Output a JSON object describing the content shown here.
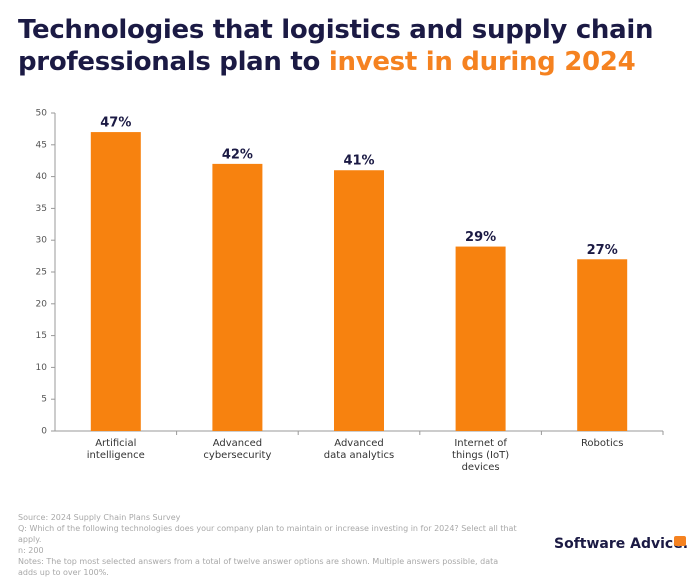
{
  "chart_data": {
    "type": "bar",
    "title_parts": [
      "Technologies that logistics and supply chain professionals plan to",
      "invest in during 2024"
    ],
    "categories": [
      [
        "Artificial",
        "intelligence"
      ],
      [
        "Advanced",
        "cybersecurity"
      ],
      [
        "Advanced",
        "data analytics"
      ],
      [
        "Internet of",
        "things (IoT)",
        "devices"
      ],
      [
        "Robotics"
      ]
    ],
    "values": [
      47,
      42,
      41,
      29,
      27
    ],
    "value_labels": [
      "47%",
      "42%",
      "41%",
      "29%",
      "27%"
    ],
    "color": "#f7820f",
    "ylim": [
      0,
      50
    ],
    "yticks": [
      0,
      5,
      10,
      15,
      20,
      25,
      30,
      35,
      40,
      45,
      50
    ],
    "footnotes": [
      "Source: 2024 Supply Chain Plans Survey",
      "Q: Which of the following technologies does your company plan to maintain or increase investing in for 2024? Select all that apply.",
      "n: 200",
      "Notes: The top most selected answers from a total of twelve answer options are shown. Multiple answers possible, data adds up to over 100%."
    ],
    "brand": "Software Advice."
  }
}
